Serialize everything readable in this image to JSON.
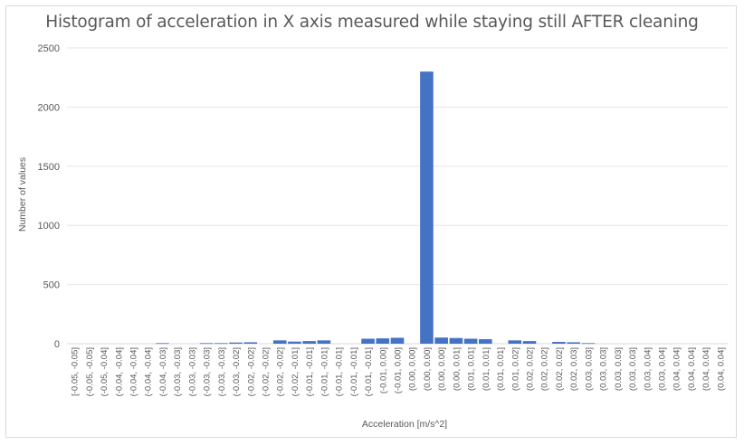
{
  "chart_data": {
    "type": "bar",
    "title": "Histogram of acceleration in X axis measured while staying still AFTER cleaning",
    "xlabel": "Acceleration [m/s^2]",
    "ylabel": "Number of values",
    "ylim": [
      0,
      2500
    ],
    "yticks": [
      0,
      500,
      1000,
      1500,
      2000,
      2500
    ],
    "grid": true,
    "bar_color": "#4472c4",
    "categories": [
      "[-0.05, -0.05]",
      "(-0.05, -0.05]",
      "(-0.05, -0.04]",
      "(-0.04, -0.04]",
      "(-0.04, -0.04]",
      "(-0.04, -0.04]",
      "(-0.04, -0.03]",
      "(-0.03, -0.03]",
      "(-0.03, -0.03]",
      "(-0.03, -0.03]",
      "(-0.03, -0.03]",
      "(-0.03, -0.02]",
      "(-0.02, -0.02]",
      "(-0.02, -0.02]",
      "(-0.02, -0.02]",
      "(-0.02, -0.01]",
      "(-0.01, -0.01]",
      "(-0.01, -0.01]",
      "(-0.01, -0.01]",
      "(-0.01, -0.01]",
      "(-0.01, -0.01]",
      "(-0.01, 0.00]",
      "(-0.01, 0.00]",
      "(0.00, 0.00]",
      "(0.00, 0.00]",
      "(0.00, 0.00]",
      "(0.00, 0.01]",
      "(0.01, 0.01]",
      "(0.01, 0.01]",
      "(0.01, 0.01]",
      "(0.01, 0.02]",
      "(0.02, 0.02]",
      "(0.02, 0.02]",
      "(0.02, 0.02]",
      "(0.02, 0.03]",
      "(0.03, 0.03]",
      "(0.03, 0.03]",
      "(0.03, 0.03]",
      "(0.03, 0.03]",
      "(0.03, 0.04]",
      "(0.03, 0.04]",
      "(0.04, 0.04]",
      "(0.04, 0.04]",
      "(0.04, 0.04]",
      "(0.04, 0.04]"
    ],
    "values": [
      0,
      0,
      0,
      0,
      0,
      0,
      5,
      0,
      0,
      5,
      5,
      10,
      12,
      0,
      28,
      18,
      22,
      28,
      0,
      0,
      42,
      45,
      50,
      0,
      2300,
      52,
      48,
      42,
      38,
      0,
      28,
      22,
      0,
      15,
      12,
      5,
      0,
      0,
      0,
      0,
      0,
      0,
      0,
      0,
      0
    ]
  }
}
